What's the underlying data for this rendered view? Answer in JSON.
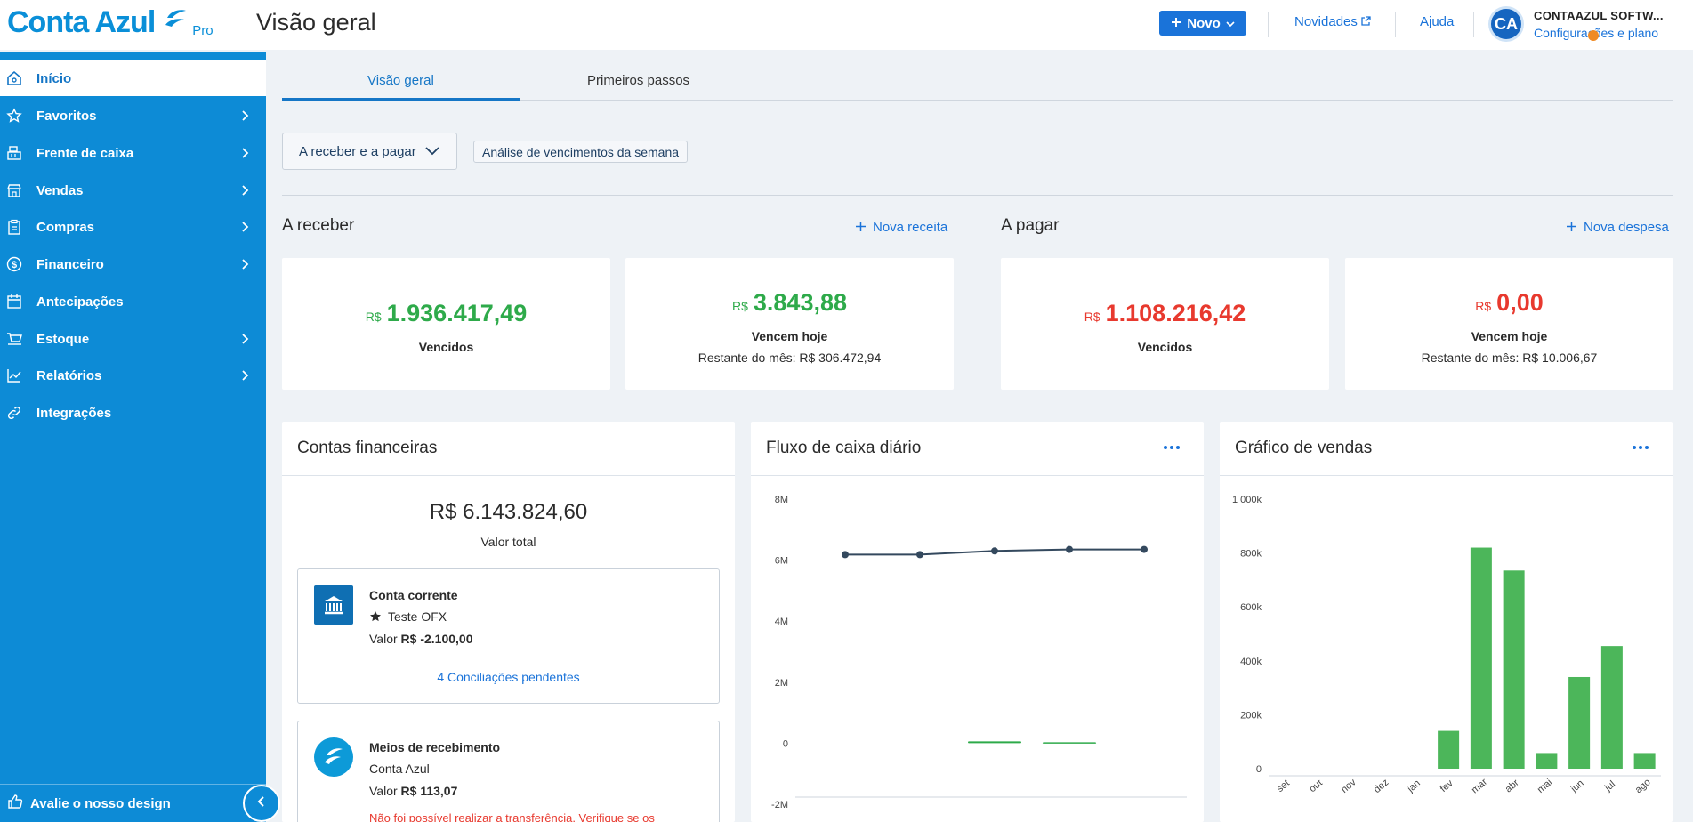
{
  "app": {
    "brand": "Conta Azul",
    "brand_tier": "Pro",
    "page_title": "Visão geral"
  },
  "topbar": {
    "new_button": "Novo",
    "news_link": "Novidades",
    "help_link": "Ajuda",
    "avatar_initials": "CA",
    "company_name": "CONTAAZUL SOFTW...",
    "config_link": "Configurações e plano"
  },
  "sidebar": {
    "items": [
      {
        "label": "Início",
        "icon": "home-icon",
        "active": true
      },
      {
        "label": "Favoritos",
        "icon": "star-icon"
      },
      {
        "label": "Frente de caixa",
        "icon": "cash-register-icon"
      },
      {
        "label": "Vendas",
        "icon": "store-icon"
      },
      {
        "label": "Compras",
        "icon": "clipboard-icon"
      },
      {
        "label": "Financeiro",
        "icon": "dollar-circle-icon"
      },
      {
        "label": "Antecipações",
        "icon": "calendar-icon"
      },
      {
        "label": "Estoque",
        "icon": "inventory-icon"
      },
      {
        "label": "Relatórios",
        "icon": "line-chart-icon"
      },
      {
        "label": "Integrações",
        "icon": "link-icon"
      }
    ],
    "feedback": "Avalie o nosso design"
  },
  "tabs": [
    {
      "label": "Visão geral",
      "active": true
    },
    {
      "label": "Primeiros passos"
    }
  ],
  "filters": {
    "select_value": "A receber e a pagar",
    "week_analysis": "Análise de vencimentos da semana"
  },
  "receivable": {
    "title": "A receber",
    "action": "Nova receita",
    "currency": "R$",
    "overdue_amount": "1.936.417,49",
    "overdue_label": "Vencidos",
    "today_amount": "3.843,88",
    "today_label": "Vencem hoje",
    "month_rest": "Restante do mês: R$ 306.472,94"
  },
  "payable": {
    "title": "A pagar",
    "action": "Nova despesa",
    "currency": "R$",
    "overdue_amount": "1.108.216,42",
    "overdue_label": "Vencidos",
    "today_amount": "0,00",
    "today_label": "Vencem hoje",
    "month_rest": "Restante do mês: R$ 10.006,67"
  },
  "accounts": {
    "title": "Contas financeiras",
    "total": "R$ 6.143.824,60",
    "total_label": "Valor total",
    "checking": {
      "name": "Conta corrente",
      "bank": "Teste OFX",
      "value_label": "Valor",
      "value": "R$ -2.100,00",
      "pending": "4 Conciliações pendentes"
    },
    "receiving": {
      "name": "Meios de recebimento",
      "provider": "Conta Azul",
      "value_label": "Valor",
      "value": "R$ 113,07",
      "error": "Não foi possível realizar a transferência. Verifique se os"
    }
  },
  "cashflow": {
    "title": "Fluxo de caixa diário"
  },
  "sales": {
    "title": "Gráfico de vendas"
  },
  "chart_data": [
    {
      "type": "line",
      "title": "Fluxo de caixa diário",
      "y_ticks": [
        "8M",
        "6M",
        "4M",
        "2M",
        "0",
        "-2M"
      ],
      "ylim": [
        -2000000,
        8000000
      ],
      "series": [
        {
          "values": [
            6180000,
            6180000,
            6300000,
            6350000,
            6350000
          ]
        }
      ],
      "bars": [
        {
          "values": [
            0,
            0,
            60000,
            30000,
            0
          ]
        }
      ],
      "colors": {
        "line": "#34495e",
        "bar": "#2eaa4a"
      }
    },
    {
      "type": "bar",
      "title": "Gráfico de vendas",
      "y_ticks": [
        "1 000k",
        "800k",
        "600k",
        "400k",
        "200k",
        "0"
      ],
      "ylim": [
        0,
        1000000
      ],
      "categories": [
        "set",
        "out",
        "nov",
        "dez",
        "jan",
        "fev",
        "mar",
        "abr",
        "mai",
        "jun",
        "jul",
        "ago"
      ],
      "values": [
        0,
        0,
        0,
        0,
        0,
        140000,
        820000,
        735000,
        58000,
        340000,
        455000,
        58000
      ],
      "colors": {
        "bar": "#4cb65a"
      }
    }
  ]
}
